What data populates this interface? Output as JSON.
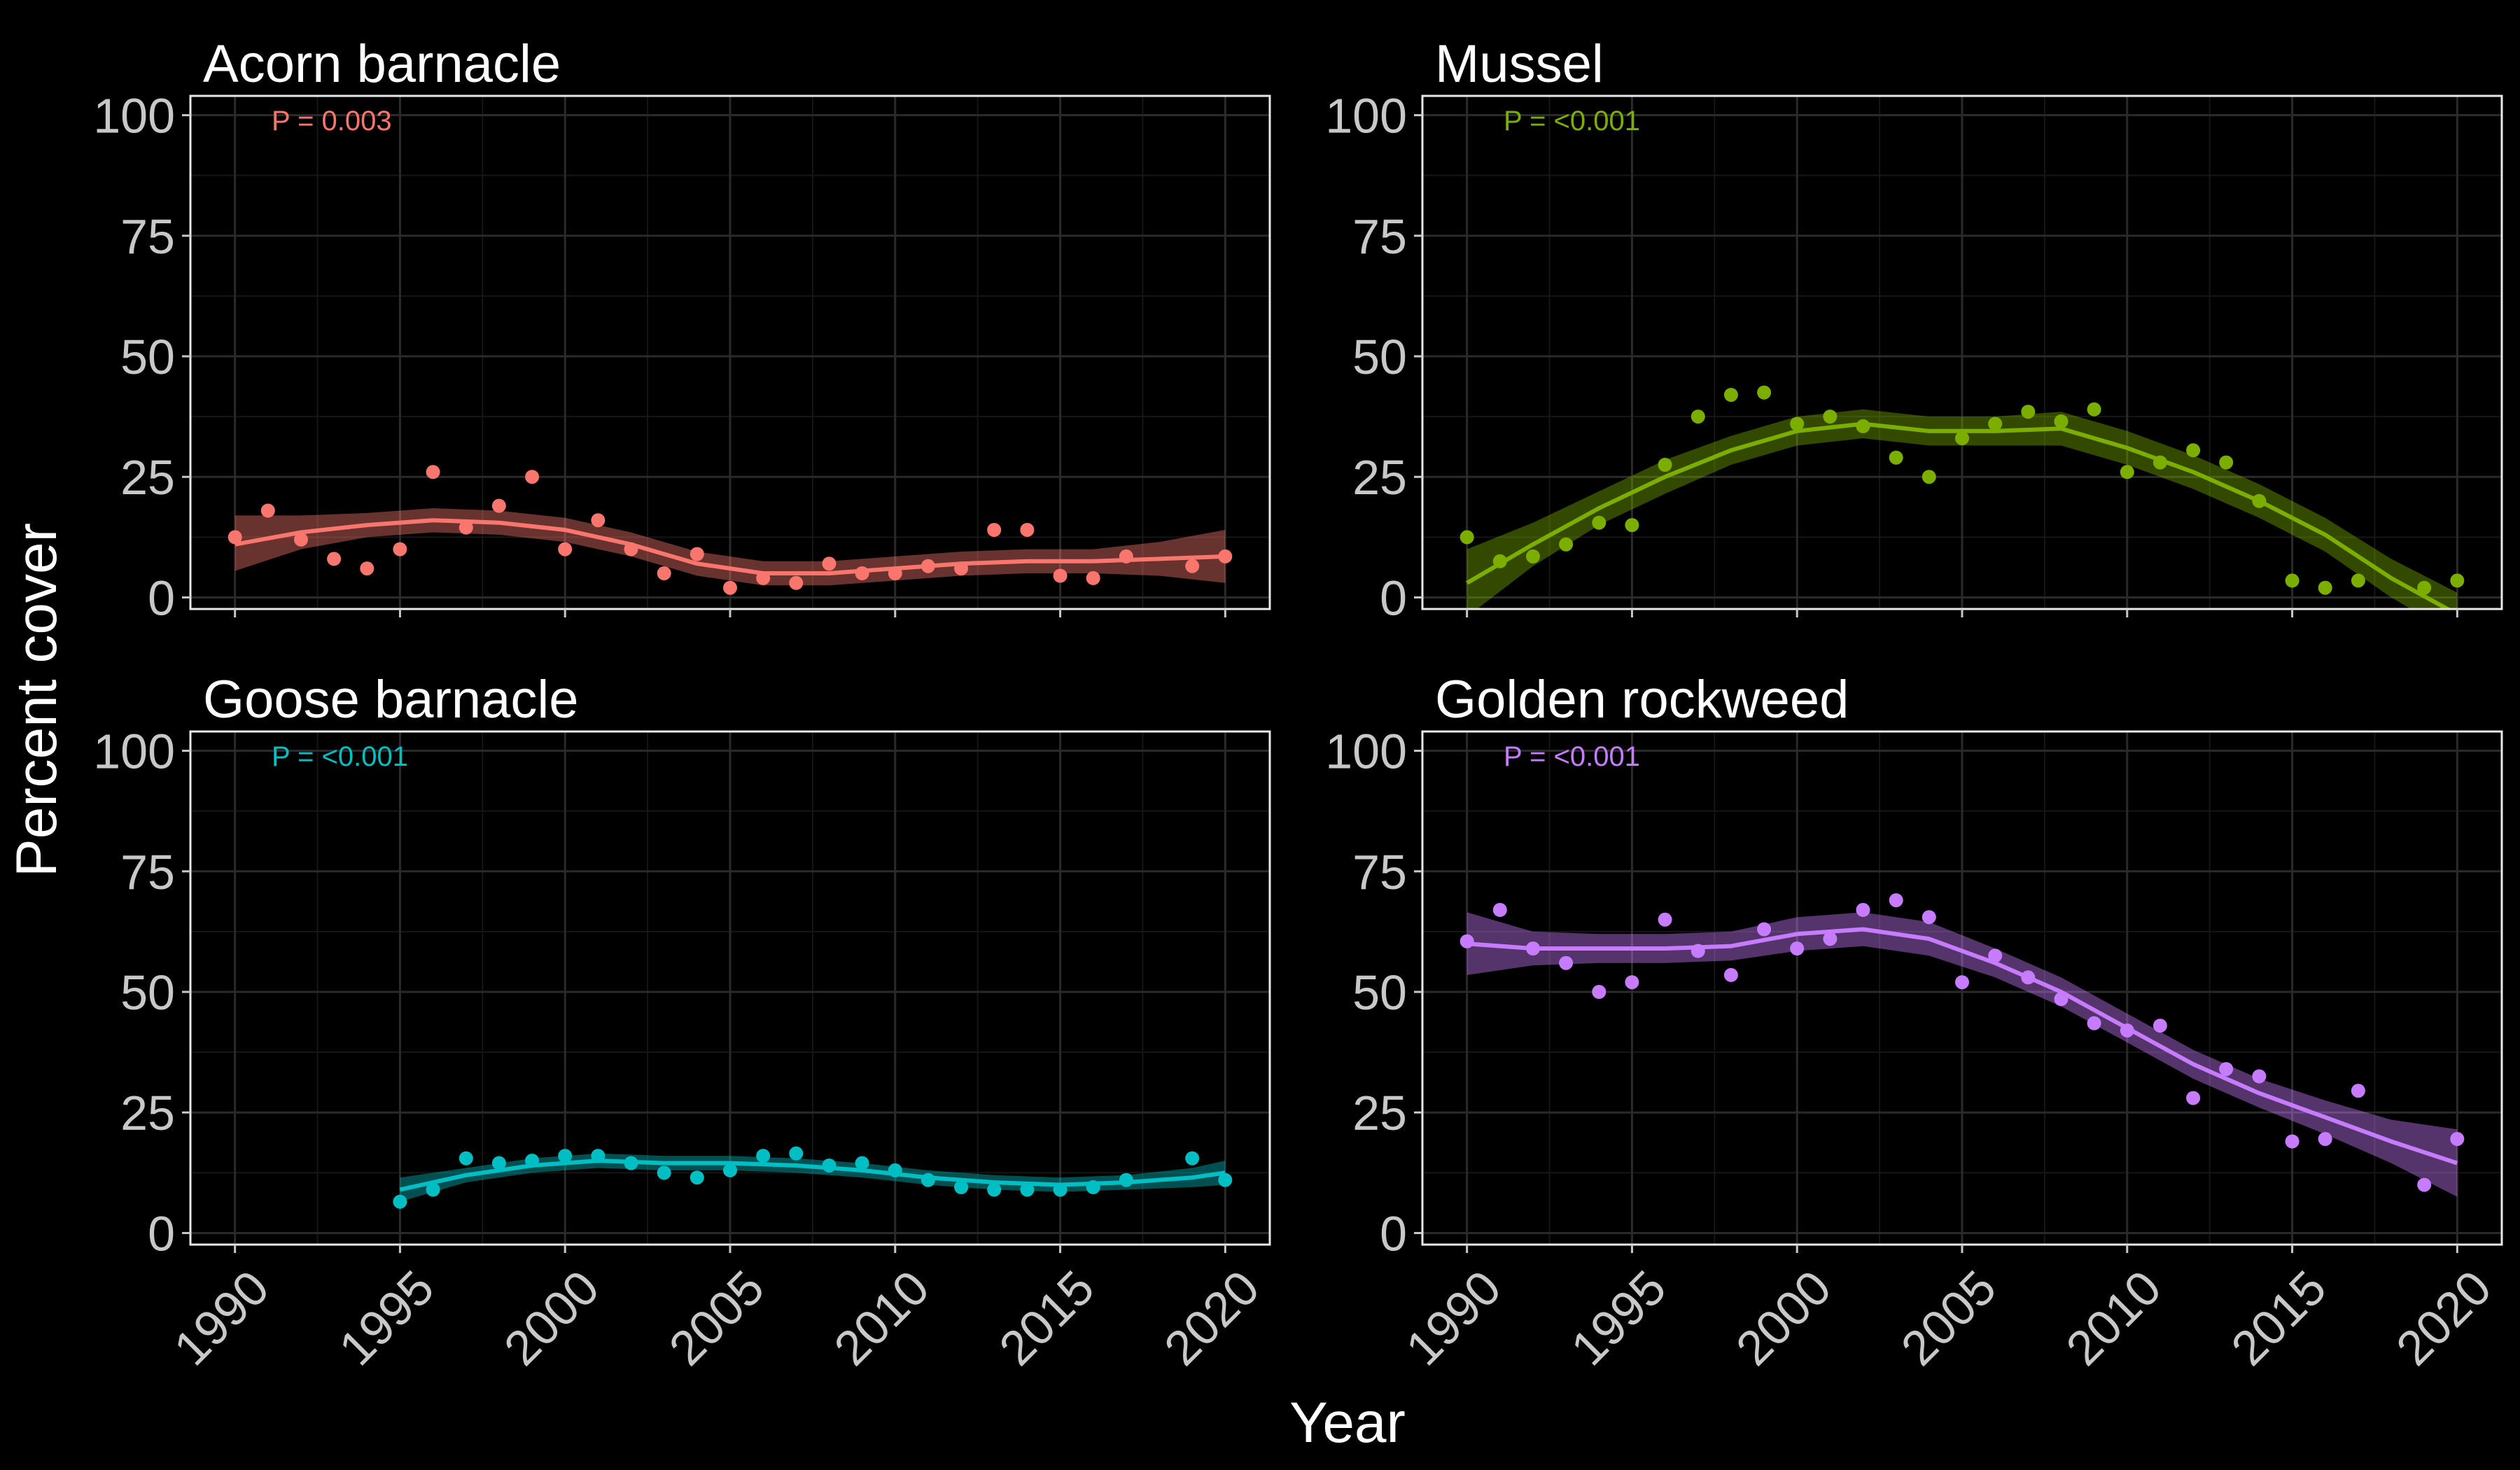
{
  "chart_data": [
    {
      "type": "scatter",
      "title": "Acorn barnacle",
      "annotation": "P = 0.003",
      "color": "#f8766d",
      "xlim": [
        1990,
        2020
      ],
      "ylim": [
        0,
        100
      ],
      "points": {
        "x": [
          1990,
          1991,
          1992,
          1993,
          1994,
          1995,
          1996,
          1997,
          1998,
          1999,
          2000,
          2001,
          2002,
          2003,
          2004,
          2005,
          2006,
          2007,
          2008,
          2009,
          2010,
          2011,
          2012,
          2013,
          2014,
          2015,
          2016,
          2017,
          2019,
          2020
        ],
        "y": [
          12.5,
          18,
          12,
          8,
          6,
          10,
          26,
          14.5,
          19,
          25,
          10,
          16,
          10,
          5,
          9,
          2,
          4,
          3,
          7,
          5,
          5,
          6.5,
          6,
          14,
          14,
          4.5,
          4,
          8.5,
          6.5,
          8.5
        ]
      },
      "smooth": {
        "x": [
          1990,
          1992,
          1994,
          1996,
          1998,
          2000,
          2002,
          2004,
          2006,
          2008,
          2010,
          2012,
          2014,
          2016,
          2018,
          2020
        ],
        "y": [
          11,
          13.5,
          15,
          16,
          15.5,
          14,
          11,
          7,
          5,
          5,
          6,
          7,
          7.5,
          7.5,
          8,
          8.5
        ],
        "lower": [
          5.5,
          10,
          12.5,
          13.5,
          13,
          11.5,
          8.5,
          4.5,
          2.5,
          2.5,
          3.5,
          4.5,
          5,
          5,
          4.5,
          3
        ],
        "upper": [
          17,
          17,
          17.5,
          18.5,
          18,
          16.5,
          13.5,
          9.5,
          7.5,
          7.5,
          8.5,
          9.5,
          10,
          10,
          11.5,
          14
        ]
      }
    },
    {
      "type": "scatter",
      "title": "Mussel",
      "annotation": "P = <0.001",
      "color": "#7cae00",
      "xlim": [
        1990,
        2020
      ],
      "ylim": [
        0,
        100
      ],
      "points": {
        "x": [
          1990,
          1991,
          1992,
          1993,
          1994,
          1995,
          1996,
          1997,
          1998,
          1999,
          2000,
          2001,
          2002,
          2003,
          2004,
          2005,
          2006,
          2007,
          2008,
          2009,
          2010,
          2011,
          2012,
          2013,
          2014,
          2015,
          2016,
          2017,
          2019,
          2020
        ],
        "y": [
          12.5,
          7.5,
          8.5,
          11,
          15.5,
          15,
          27.5,
          37.5,
          42,
          42.5,
          36,
          37.5,
          35.5,
          29,
          25,
          33,
          36,
          38.5,
          36.5,
          39,
          26,
          28,
          30.5,
          28,
          20,
          3.5,
          2,
          3.5,
          2,
          3.5
        ]
      },
      "smooth": {
        "x": [
          1990,
          1992,
          1994,
          1996,
          1998,
          2000,
          2002,
          2004,
          2006,
          2008,
          2010,
          2012,
          2014,
          2016,
          2018,
          2020
        ],
        "y": [
          3,
          11,
          18.5,
          25,
          30.5,
          34.5,
          36,
          34.5,
          34.5,
          35,
          31,
          26,
          20,
          13,
          4,
          -3.5
        ],
        "lower": [
          -4,
          6.5,
          15,
          21.5,
          27.5,
          31.5,
          33,
          31.5,
          31.5,
          31.5,
          27.5,
          22.5,
          16.5,
          9.5,
          0,
          -8
        ],
        "upper": [
          10,
          15.5,
          22,
          28.5,
          33.5,
          37.5,
          39,
          37.5,
          37.5,
          38.5,
          34.5,
          29.5,
          23.5,
          16.5,
          8,
          1
        ]
      }
    },
    {
      "type": "scatter",
      "title": "Goose barnacle",
      "annotation": "P = <0.001",
      "color": "#00bfc4",
      "xlim": [
        1990,
        2020
      ],
      "ylim": [
        0,
        100
      ],
      "points": {
        "x": [
          1995,
          1996,
          1997,
          1998,
          1999,
          2000,
          2001,
          2002,
          2003,
          2004,
          2005,
          2006,
          2007,
          2008,
          2009,
          2010,
          2011,
          2012,
          2013,
          2014,
          2015,
          2016,
          2017,
          2019,
          2020
        ],
        "y": [
          6.5,
          9,
          15.5,
          14.5,
          15,
          16,
          16,
          14.5,
          12.5,
          11.5,
          13,
          16,
          16.5,
          14,
          14.5,
          13,
          11,
          9.5,
          9,
          9,
          9,
          9.5,
          11,
          15.5,
          11
        ]
      },
      "smooth": {
        "x": [
          1995,
          1997,
          1999,
          2001,
          2003,
          2005,
          2007,
          2009,
          2011,
          2013,
          2015,
          2017,
          2019,
          2020
        ],
        "y": [
          9,
          12,
          14,
          15,
          14.5,
          14.5,
          14,
          13,
          11.5,
          10.5,
          10,
          10.5,
          11.5,
          12.5
        ],
        "lower": [
          6.5,
          10.5,
          12.5,
          13.5,
          13,
          13,
          12.5,
          11.5,
          10,
          9,
          8.5,
          9,
          9.5,
          10
        ],
        "upper": [
          11.5,
          13.5,
          15.5,
          16.5,
          16,
          16,
          15.5,
          14.5,
          13,
          12,
          11.5,
          12,
          13.5,
          15
        ]
      }
    },
    {
      "type": "scatter",
      "title": "Golden rockweed",
      "annotation": "P = <0.001",
      "color": "#c77cff",
      "xlim": [
        1990,
        2020
      ],
      "ylim": [
        0,
        100
      ],
      "points": {
        "x": [
          1990,
          1991,
          1992,
          1993,
          1994,
          1995,
          1996,
          1997,
          1998,
          1999,
          2000,
          2001,
          2002,
          2003,
          2004,
          2005,
          2006,
          2007,
          2008,
          2009,
          2010,
          2011,
          2012,
          2013,
          2014,
          2015,
          2016,
          2017,
          2019,
          2020
        ],
        "y": [
          60.5,
          67,
          59,
          56,
          50,
          52,
          65,
          58.5,
          53.5,
          63,
          59,
          61,
          67,
          69,
          65.5,
          52,
          57.5,
          53,
          48.5,
          43.5,
          42,
          43,
          28,
          34,
          32.5,
          19,
          19.5,
          29.5,
          10,
          19.5
        ]
      },
      "smooth": {
        "x": [
          1990,
          1992,
          1994,
          1996,
          1998,
          2000,
          2002,
          2004,
          2006,
          2008,
          2010,
          2012,
          2014,
          2016,
          2018,
          2020
        ],
        "y": [
          60,
          59,
          59,
          59,
          59.5,
          62,
          63,
          61,
          56,
          50,
          42.5,
          35,
          29,
          24,
          19,
          14.5
        ],
        "lower": [
          53.5,
          55.5,
          56,
          56,
          56.5,
          58.5,
          59.5,
          57.5,
          53,
          47,
          39.5,
          32,
          26,
          20.5,
          14.5,
          7.5
        ],
        "upper": [
          66.5,
          62.5,
          62,
          62,
          62.5,
          65.5,
          66.5,
          64.5,
          59,
          53,
          45.5,
          38,
          32,
          27.5,
          23.5,
          21.5
        ]
      }
    }
  ],
  "axes": {
    "xlabel": "Year",
    "ylabel": "Percent cover",
    "x_ticks": [
      "1990",
      "1995",
      "2000",
      "2005",
      "2010",
      "2015",
      "2020"
    ],
    "y_ticks": [
      "0",
      "25",
      "50",
      "75",
      "100"
    ],
    "grid": true,
    "shared_x": true
  }
}
